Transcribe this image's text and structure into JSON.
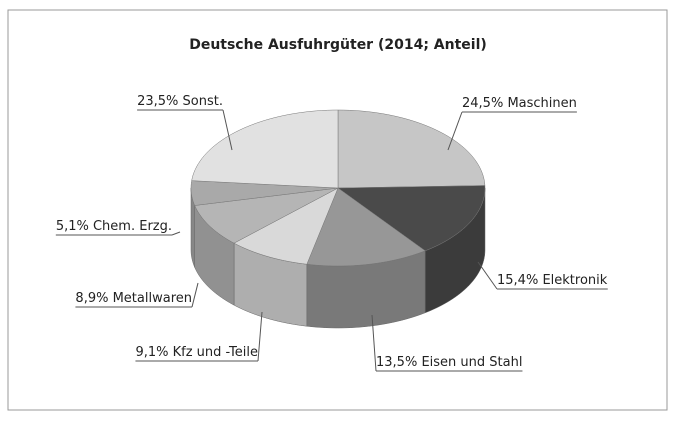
{
  "chart_data": {
    "type": "pie",
    "title": "Deutsche Ausfuhrgüter (2014; Anteil)",
    "categories": [
      "Maschinen",
      "Elektronik",
      "Eisen und Stahl",
      "Kfz und -Teile",
      "Metallwaren",
      "Chem. Erzg.",
      "Sonst."
    ],
    "values": [
      24.5,
      15.4,
      13.5,
      9.1,
      8.9,
      5.1,
      23.5
    ],
    "value_labels": [
      "24,5%",
      "15,4%",
      "13,5%",
      "9,1%",
      "8,9%",
      "5,1%",
      "23,5%"
    ],
    "colors": [
      "#c6c6c6",
      "#4a4a4a",
      "#979797",
      "#d9d9d9",
      "#b5b5b5",
      "#a9a9a9",
      "#e1e1e1"
    ]
  }
}
